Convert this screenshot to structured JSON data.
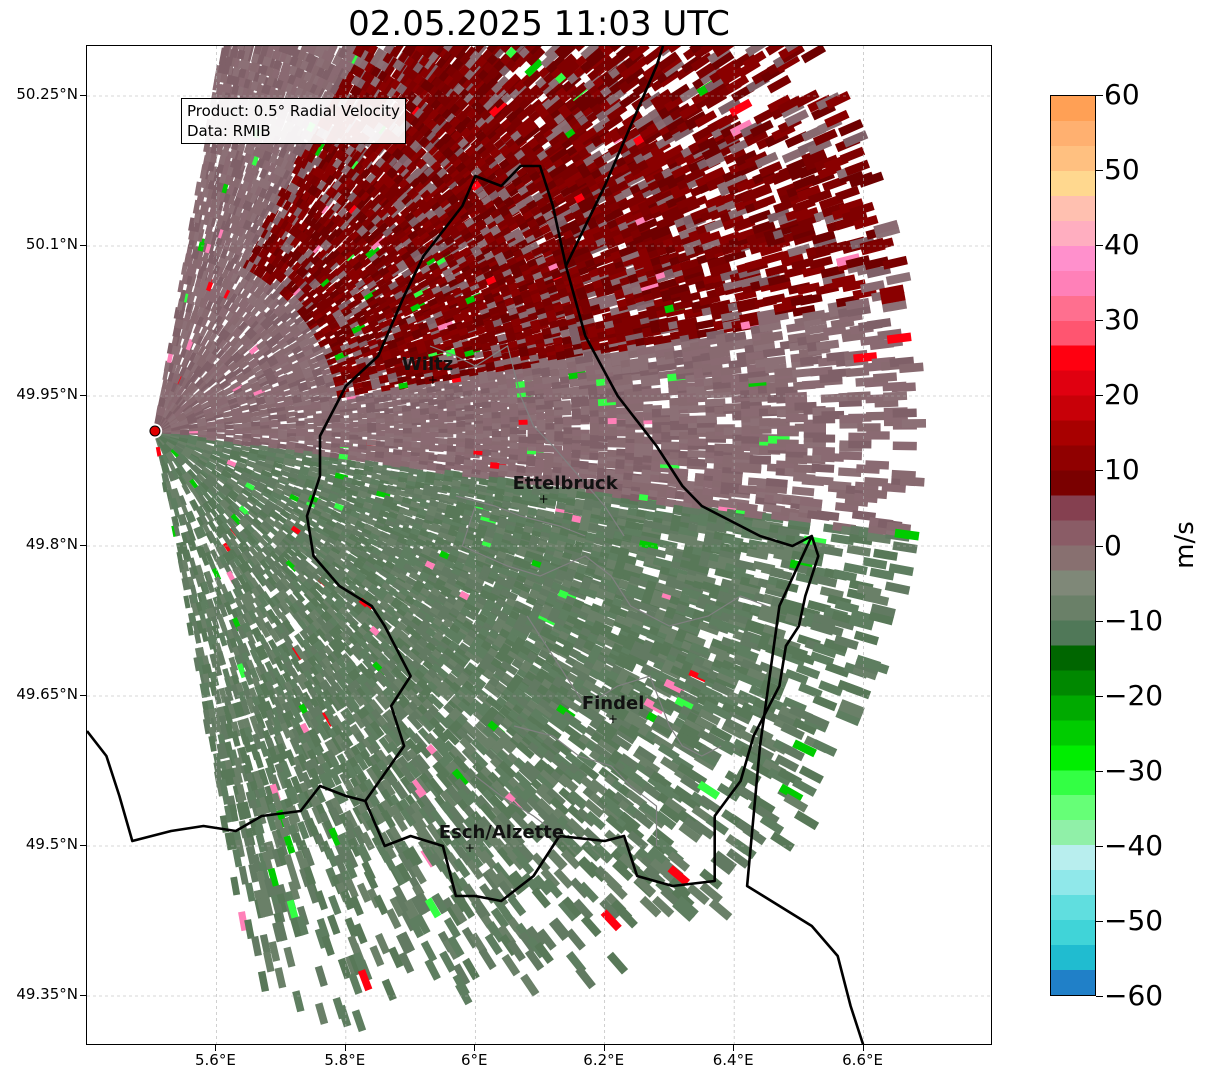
{
  "title": "02.05.2025 11:03 UTC",
  "info_box": {
    "line1": "Product: 0.5° Radial Velocity",
    "line2": "Data: RMIB"
  },
  "map": {
    "lon_range": [
      5.4,
      6.8
    ],
    "lat_range": [
      49.3,
      50.3
    ],
    "lat_ticks": [
      {
        "value": 50.25,
        "label": "50.25°N"
      },
      {
        "value": 50.1,
        "label": "50.1°N"
      },
      {
        "value": 49.95,
        "label": "49.95°N"
      },
      {
        "value": 49.8,
        "label": "49.8°N"
      },
      {
        "value": 49.65,
        "label": "49.65°N"
      },
      {
        "value": 49.5,
        "label": "49.5°N"
      },
      {
        "value": 49.35,
        "label": "49.35°N"
      }
    ],
    "lon_ticks": [
      {
        "value": 5.6,
        "label": "5.6°E"
      },
      {
        "value": 5.8,
        "label": "5.8°E"
      },
      {
        "value": 6.0,
        "label": "6°E"
      },
      {
        "value": 6.2,
        "label": "6.2°E"
      },
      {
        "value": 6.4,
        "label": "6.4°E"
      },
      {
        "value": 6.6,
        "label": "6.6°E"
      }
    ],
    "radar_site": {
      "lon": 5.505,
      "lat": 49.915
    },
    "cities": [
      {
        "name": "Wiltz",
        "lon": 5.933,
        "lat": 49.966
      },
      {
        "name": "Ettelbruck",
        "lon": 6.104,
        "lat": 49.847
      },
      {
        "name": "Findel",
        "lon": 6.211,
        "lat": 49.627
      },
      {
        "name": "Esch/Alzette",
        "lon": 5.99,
        "lat": 49.498
      }
    ],
    "borders": {
      "luxembourg": [
        [
          6.13,
          49.51
        ],
        [
          6.2,
          49.505
        ],
        [
          6.23,
          49.51
        ],
        [
          6.25,
          49.47
        ],
        [
          6.305,
          49.46
        ],
        [
          6.37,
          49.465
        ],
        [
          6.37,
          49.53
        ],
        [
          6.41,
          49.565
        ],
        [
          6.43,
          49.61
        ],
        [
          6.47,
          49.66
        ],
        [
          6.48,
          49.7
        ],
        [
          6.5,
          49.72
        ],
        [
          6.51,
          49.75
        ],
        [
          6.53,
          49.79
        ],
        [
          6.52,
          49.81
        ],
        [
          6.49,
          49.8
        ],
        [
          6.44,
          49.81
        ],
        [
          6.41,
          49.82
        ],
        [
          6.35,
          49.84
        ],
        [
          6.32,
          49.86
        ],
        [
          6.28,
          49.9
        ],
        [
          6.22,
          49.95
        ],
        [
          6.17,
          50.01
        ],
        [
          6.14,
          50.08
        ],
        [
          6.12,
          50.14
        ],
        [
          6.1,
          50.18
        ],
        [
          6.07,
          50.18
        ],
        [
          6.04,
          50.16
        ],
        [
          6.0,
          50.17
        ],
        [
          5.98,
          50.14
        ],
        [
          5.92,
          50.09
        ],
        [
          5.89,
          50.05
        ],
        [
          5.85,
          49.99
        ],
        [
          5.8,
          49.96
        ],
        [
          5.76,
          49.91
        ],
        [
          5.76,
          49.87
        ],
        [
          5.74,
          49.83
        ],
        [
          5.75,
          49.79
        ],
        [
          5.79,
          49.76
        ],
        [
          5.84,
          49.74
        ],
        [
          5.86,
          49.72
        ],
        [
          5.9,
          49.67
        ],
        [
          5.87,
          49.64
        ],
        [
          5.89,
          49.6
        ],
        [
          5.83,
          49.545
        ],
        [
          5.86,
          49.5
        ],
        [
          5.9,
          49.51
        ],
        [
          5.95,
          49.5
        ],
        [
          5.97,
          49.45
        ],
        [
          6.0,
          49.45
        ],
        [
          6.04,
          49.445
        ],
        [
          6.09,
          49.47
        ],
        [
          6.13,
          49.51
        ]
      ],
      "be_fr": [
        [
          5.4,
          49.615
        ],
        [
          5.43,
          49.59
        ],
        [
          5.45,
          49.55
        ],
        [
          5.47,
          49.505
        ],
        [
          5.53,
          49.515
        ],
        [
          5.58,
          49.52
        ],
        [
          5.63,
          49.515
        ],
        [
          5.67,
          49.53
        ],
        [
          5.73,
          49.535
        ],
        [
          5.76,
          49.56
        ],
        [
          5.8,
          49.55
        ],
        [
          5.83,
          49.545
        ]
      ],
      "de_east": [
        [
          6.52,
          49.81
        ],
        [
          6.47,
          49.74
        ],
        [
          6.44,
          49.6
        ],
        [
          6.42,
          49.46
        ],
        [
          6.52,
          49.42
        ],
        [
          6.56,
          49.39
        ],
        [
          6.58,
          49.34
        ],
        [
          6.6,
          49.3
        ]
      ],
      "de_north": [
        [
          6.14,
          50.08
        ],
        [
          6.2,
          50.16
        ],
        [
          6.24,
          50.22
        ],
        [
          6.28,
          50.28
        ],
        [
          6.29,
          50.3
        ]
      ],
      "cantons": [
        [
          [
            5.93,
            50.0
          ],
          [
            5.97,
            49.99
          ],
          [
            6.0,
            49.98
          ],
          [
            6.05,
            50.0
          ],
          [
            6.07,
            49.95
          ],
          [
            6.09,
            49.92
          ],
          [
            6.12,
            49.9
          ],
          [
            6.16,
            49.87
          ],
          [
            6.2,
            49.84
          ],
          [
            6.23,
            49.81
          ]
        ],
        [
          [
            5.97,
            49.85
          ],
          [
            6.03,
            49.84
          ],
          [
            6.07,
            49.83
          ],
          [
            6.13,
            49.82
          ],
          [
            6.17,
            49.81
          ]
        ],
        [
          [
            6.0,
            49.84
          ],
          [
            5.98,
            49.8
          ],
          [
            6.05,
            49.78
          ],
          [
            6.1,
            49.77
          ],
          [
            6.17,
            49.79
          ],
          [
            6.21,
            49.77
          ],
          [
            6.24,
            49.74
          ],
          [
            6.3,
            49.72
          ],
          [
            6.36,
            49.73
          ],
          [
            6.41,
            49.75
          ],
          [
            6.45,
            49.74
          ]
        ],
        [
          [
            6.08,
            49.73
          ],
          [
            6.14,
            49.67
          ],
          [
            6.17,
            49.64
          ],
          [
            6.22,
            49.66
          ],
          [
            6.27,
            49.67
          ],
          [
            6.3,
            49.62
          ],
          [
            6.32,
            49.6
          ],
          [
            6.35,
            49.59
          ],
          [
            6.38,
            49.6
          ]
        ],
        [
          [
            6.06,
            49.62
          ],
          [
            6.12,
            49.61
          ],
          [
            6.16,
            49.59
          ],
          [
            6.21,
            49.58
          ],
          [
            6.24,
            49.56
          ],
          [
            6.28,
            49.54
          ],
          [
            6.28,
            49.5
          ]
        ],
        [
          [
            6.0,
            49.57
          ],
          [
            6.04,
            49.55
          ],
          [
            6.09,
            49.53
          ],
          [
            6.13,
            49.51
          ]
        ]
      ]
    }
  },
  "colorbar": {
    "label": "m/s",
    "range": [
      -60,
      60
    ],
    "ticks": [
      {
        "value": 60,
        "label": "60"
      },
      {
        "value": 50,
        "label": "50"
      },
      {
        "value": 40,
        "label": "40"
      },
      {
        "value": 30,
        "label": "30"
      },
      {
        "value": 20,
        "label": "20"
      },
      {
        "value": 10,
        "label": "10"
      },
      {
        "value": 0,
        "label": "0"
      },
      {
        "value": -10,
        "label": "−10"
      },
      {
        "value": -20,
        "label": "−20"
      },
      {
        "value": -30,
        "label": "−30"
      },
      {
        "value": -40,
        "label": "−40"
      },
      {
        "value": -50,
        "label": "−50"
      },
      {
        "value": -60,
        "label": "−60"
      }
    ],
    "colors": [
      "#ffa055",
      "#ffb070",
      "#ffc080",
      "#ffd88f",
      "#ffc0b0",
      "#ffaec0",
      "#ff90cc",
      "#ff80b8",
      "#ff6f8f",
      "#ff5570",
      "#ff0010",
      "#e00010",
      "#c80008",
      "#a80000",
      "#900000",
      "#7a0000",
      "#854050",
      "#8a5c66",
      "#887070",
      "#7f8878",
      "#6a8068",
      "#507858",
      "#006600",
      "#008800",
      "#00aa00",
      "#00cc00",
      "#00ee00",
      "#33ff44",
      "#66ff77",
      "#90f0a8",
      "#b8eeee",
      "#90e8ea",
      "#60dedf",
      "#40d4d8",
      "#20bcd0",
      "#2080c8"
    ]
  }
}
